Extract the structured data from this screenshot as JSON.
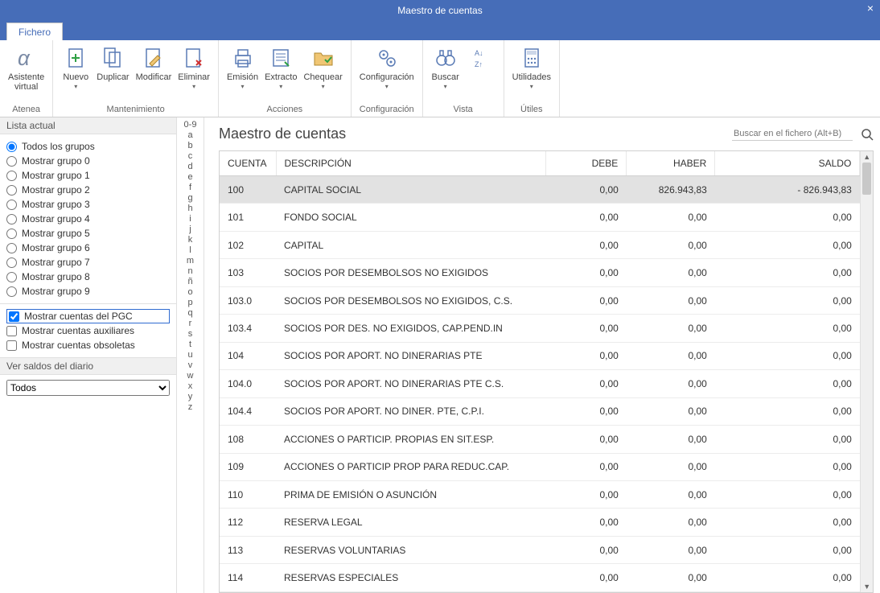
{
  "title": "Maestro de cuentas",
  "tab": "Fichero",
  "ribbon": {
    "groups": [
      {
        "label": "Atenea",
        "items": [
          {
            "name": "asistente-virtual",
            "label": "Asistente\nvirtual",
            "icon": "alpha",
            "dd": false
          }
        ]
      },
      {
        "label": "Mantenimiento",
        "items": [
          {
            "name": "nuevo",
            "label": "Nuevo",
            "icon": "doc-plus",
            "dd": true
          },
          {
            "name": "duplicar",
            "label": "Duplicar",
            "icon": "doc-dup",
            "dd": false
          },
          {
            "name": "modificar",
            "label": "Modificar",
            "icon": "doc-edit",
            "dd": false
          },
          {
            "name": "eliminar",
            "label": "Eliminar",
            "icon": "doc-del",
            "dd": true
          }
        ]
      },
      {
        "label": "Acciones",
        "items": [
          {
            "name": "emision",
            "label": "Emisión",
            "icon": "print",
            "dd": true
          },
          {
            "name": "extracto",
            "label": "Extracto",
            "icon": "extract",
            "dd": true
          },
          {
            "name": "chequear",
            "label": "Chequear",
            "icon": "folder-check",
            "dd": true
          }
        ]
      },
      {
        "label": "Configuración",
        "items": [
          {
            "name": "configuracion",
            "label": "Configuración",
            "icon": "gears",
            "dd": true
          }
        ]
      },
      {
        "label": "Vista",
        "items": [
          {
            "name": "buscar",
            "label": "Buscar",
            "icon": "binoculars",
            "dd": true
          },
          {
            "name": "ordenar",
            "label": "",
            "icon": "sort",
            "dd": false
          }
        ]
      },
      {
        "label": "Útiles",
        "items": [
          {
            "name": "utilidades",
            "label": "Utilidades",
            "icon": "calc",
            "dd": true
          }
        ]
      }
    ]
  },
  "side": {
    "list_title": "Lista actual",
    "radios": [
      {
        "label": "Todos los grupos",
        "checked": true
      },
      {
        "label": "Mostrar grupo 0",
        "checked": false
      },
      {
        "label": "Mostrar grupo 1",
        "checked": false
      },
      {
        "label": "Mostrar grupo 2",
        "checked": false
      },
      {
        "label": "Mostrar grupo 3",
        "checked": false
      },
      {
        "label": "Mostrar grupo 4",
        "checked": false
      },
      {
        "label": "Mostrar grupo 5",
        "checked": false
      },
      {
        "label": "Mostrar grupo 6",
        "checked": false
      },
      {
        "label": "Mostrar grupo 7",
        "checked": false
      },
      {
        "label": "Mostrar grupo 8",
        "checked": false
      },
      {
        "label": "Mostrar grupo 9",
        "checked": false
      }
    ],
    "checks": [
      {
        "label": "Mostrar cuentas del PGC",
        "checked": true,
        "highlight": true
      },
      {
        "label": "Mostrar cuentas auxiliares",
        "checked": false,
        "highlight": false
      },
      {
        "label": "Mostrar cuentas obsoletas",
        "checked": false,
        "highlight": false
      }
    ],
    "diary_title": "Ver saldos del diario",
    "diary_value": "Todos"
  },
  "alpha": [
    "0-9",
    "a",
    "b",
    "c",
    "d",
    "e",
    "f",
    "g",
    "h",
    "i",
    "j",
    "k",
    "l",
    "m",
    "n",
    "ñ",
    "o",
    "p",
    "q",
    "r",
    "s",
    "t",
    "u",
    "v",
    "w",
    "x",
    "y",
    "z"
  ],
  "main": {
    "heading": "Maestro de cuentas",
    "search_placeholder": "Buscar en el fichero (Alt+B)",
    "columns": [
      "CUENTA",
      "DESCRIPCIÓN",
      "DEBE",
      "HABER",
      "SALDO"
    ],
    "col_widths": [
      "70px",
      "auto",
      "100px",
      "110px",
      "180px"
    ],
    "rows": [
      {
        "cuenta": "100",
        "desc": "CAPITAL SOCIAL",
        "debe": "0,00",
        "haber": "826.943,83",
        "saldo": "- 826.943,83",
        "selected": true
      },
      {
        "cuenta": "101",
        "desc": "FONDO SOCIAL",
        "debe": "0,00",
        "haber": "0,00",
        "saldo": "0,00"
      },
      {
        "cuenta": "102",
        "desc": "CAPITAL",
        "debe": "0,00",
        "haber": "0,00",
        "saldo": "0,00"
      },
      {
        "cuenta": "103",
        "desc": "SOCIOS POR DESEMBOLSOS NO EXIGIDOS",
        "debe": "0,00",
        "haber": "0,00",
        "saldo": "0,00"
      },
      {
        "cuenta": "103.0",
        "desc": "SOCIOS POR DESEMBOLSOS NO EXIGIDOS, C.S.",
        "debe": "0,00",
        "haber": "0,00",
        "saldo": "0,00"
      },
      {
        "cuenta": "103.4",
        "desc": "SOCIOS POR DES. NO EXIGIDOS, CAP.PEND.IN",
        "debe": "0,00",
        "haber": "0,00",
        "saldo": "0,00"
      },
      {
        "cuenta": "104",
        "desc": "SOCIOS POR APORT. NO DINERARIAS PTE",
        "debe": "0,00",
        "haber": "0,00",
        "saldo": "0,00"
      },
      {
        "cuenta": "104.0",
        "desc": "SOCIOS POR APORT. NO DINERARIAS PTE C.S.",
        "debe": "0,00",
        "haber": "0,00",
        "saldo": "0,00"
      },
      {
        "cuenta": "104.4",
        "desc": "SOCIOS POR APORT. NO DINER. PTE, C.P.I.",
        "debe": "0,00",
        "haber": "0,00",
        "saldo": "0,00"
      },
      {
        "cuenta": "108",
        "desc": "ACCIONES O PARTICIP. PROPIAS EN SIT.ESP.",
        "debe": "0,00",
        "haber": "0,00",
        "saldo": "0,00"
      },
      {
        "cuenta": "109",
        "desc": "ACCIONES O PARTICIP PROP PARA REDUC.CAP.",
        "debe": "0,00",
        "haber": "0,00",
        "saldo": "0,00"
      },
      {
        "cuenta": "110",
        "desc": "PRIMA DE EMISIÓN O ASUNCIÓN",
        "debe": "0,00",
        "haber": "0,00",
        "saldo": "0,00"
      },
      {
        "cuenta": "112",
        "desc": "RESERVA LEGAL",
        "debe": "0,00",
        "haber": "0,00",
        "saldo": "0,00"
      },
      {
        "cuenta": "113",
        "desc": "RESERVAS VOLUNTARIAS",
        "debe": "0,00",
        "haber": "0,00",
        "saldo": "0,00"
      },
      {
        "cuenta": "114",
        "desc": "RESERVAS ESPECIALES",
        "debe": "0,00",
        "haber": "0,00",
        "saldo": "0,00"
      }
    ]
  }
}
